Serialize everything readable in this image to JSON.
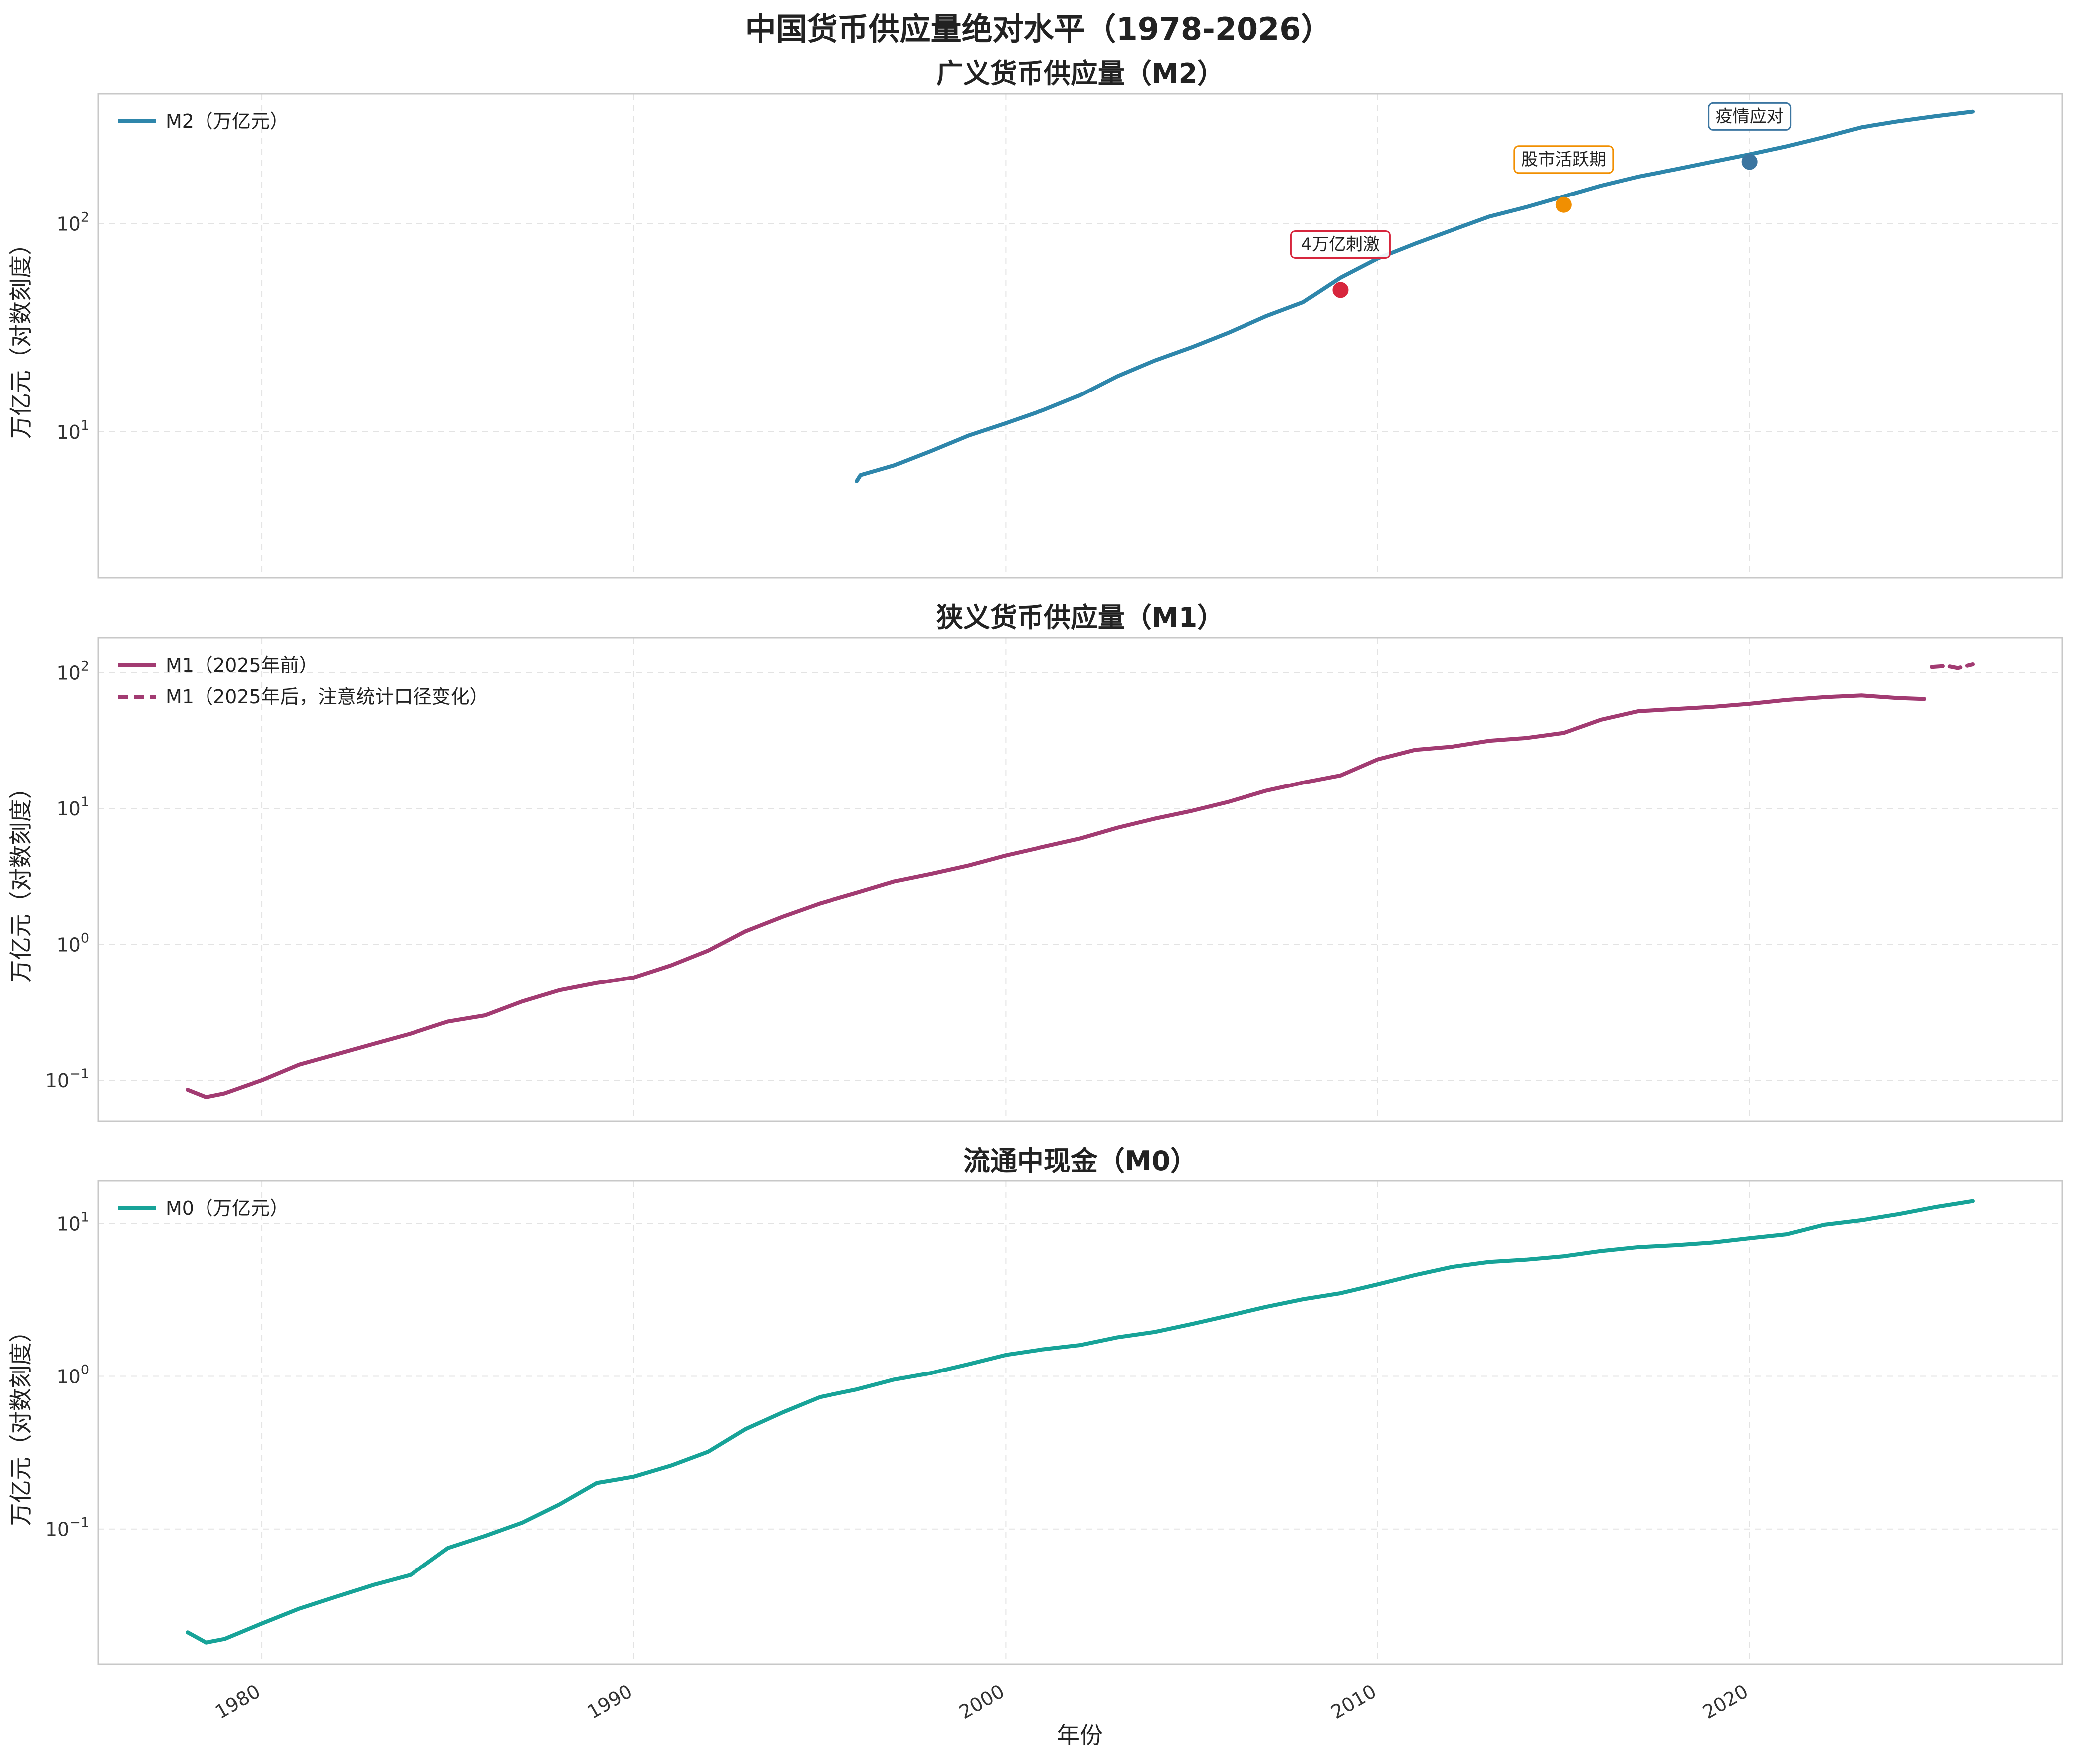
{
  "figure_title": "中国货币供应量绝对水平（1978-2026）",
  "x_axis_label": "年份",
  "x_tick_labels": [
    "1980",
    "1990",
    "2000",
    "2010",
    "2020"
  ],
  "chart_data": [
    {
      "type": "line",
      "title": "广义货币供应量（M2）",
      "ylabel": "万亿元（对数刻度）",
      "yscale": "log",
      "ylim": [
        2,
        420
      ],
      "xlim": [
        1975.6,
        2028.4
      ],
      "grid": true,
      "legend_position": "top-left",
      "ytick_labels": [
        {
          "value": 10,
          "base": "10",
          "exp": "1"
        },
        {
          "value": 100,
          "base": "10",
          "exp": "2"
        }
      ],
      "series": [
        {
          "name": "M2（万亿元）",
          "color": "#2E86AB",
          "style": "solid",
          "points": [
            [
              1996.0,
              5.8
            ],
            [
              1996.1,
              6.2
            ],
            [
              1997.0,
              6.9
            ],
            [
              1998.0,
              8.1
            ],
            [
              1999.0,
              9.6
            ],
            [
              2000.0,
              11.0
            ],
            [
              2001.0,
              12.7
            ],
            [
              2002.0,
              15.0
            ],
            [
              2003.0,
              18.5
            ],
            [
              2004.0,
              22.0
            ],
            [
              2005.0,
              25.5
            ],
            [
              2006.0,
              30.0
            ],
            [
              2007.0,
              36.0
            ],
            [
              2008.0,
              42.0
            ],
            [
              2009.0,
              55.0
            ],
            [
              2010.0,
              68.0
            ],
            [
              2011.0,
              80.0
            ],
            [
              2012.0,
              93.0
            ],
            [
              2013.0,
              108.0
            ],
            [
              2014.0,
              120.0
            ],
            [
              2015.0,
              135.0
            ],
            [
              2016.0,
              152.0
            ],
            [
              2017.0,
              168.0
            ],
            [
              2018.0,
              182.0
            ],
            [
              2019.0,
              198.0
            ],
            [
              2020.0,
              215.0
            ],
            [
              2021.0,
              235.0
            ],
            [
              2022.0,
              260.0
            ],
            [
              2023.0,
              290.0
            ],
            [
              2024.0,
              310.0
            ],
            [
              2025.0,
              328.0
            ],
            [
              2026.0,
              345.0
            ]
          ]
        }
      ],
      "annotations": [
        {
          "text": "4万亿刺激",
          "x": 2009.0,
          "y": 48.0,
          "color": "#D7263D"
        },
        {
          "text": "股市活跃期",
          "x": 2015.0,
          "y": 123.0,
          "color": "#F18F01"
        },
        {
          "text": "疫情应对",
          "x": 2020.0,
          "y": 198.0,
          "color": "#3B75A0"
        }
      ]
    },
    {
      "type": "line",
      "title": "狭义货币供应量（M1）",
      "ylabel": "万亿元（对数刻度）",
      "yscale": "log",
      "ylim": [
        0.05,
        180
      ],
      "xlim": [
        1975.6,
        2028.4
      ],
      "grid": true,
      "legend_position": "top-left",
      "ytick_labels": [
        {
          "value": 0.1,
          "base": "10",
          "exp": "−1"
        },
        {
          "value": 1,
          "base": "10",
          "exp": "0"
        },
        {
          "value": 10,
          "base": "10",
          "exp": "1"
        },
        {
          "value": 100,
          "base": "10",
          "exp": "2"
        }
      ],
      "series": [
        {
          "name": "M1（2025年前）",
          "color": "#A23B72",
          "style": "solid",
          "points": [
            [
              1978.0,
              0.085
            ],
            [
              1978.5,
              0.075
            ],
            [
              1979.0,
              0.08
            ],
            [
              1980.0,
              0.1
            ],
            [
              1981.0,
              0.13
            ],
            [
              1982.0,
              0.155
            ],
            [
              1983.0,
              0.185
            ],
            [
              1984.0,
              0.22
            ],
            [
              1985.0,
              0.27
            ],
            [
              1986.0,
              0.3
            ],
            [
              1987.0,
              0.38
            ],
            [
              1988.0,
              0.46
            ],
            [
              1989.0,
              0.52
            ],
            [
              1990.0,
              0.57
            ],
            [
              1991.0,
              0.7
            ],
            [
              1992.0,
              0.9
            ],
            [
              1993.0,
              1.25
            ],
            [
              1994.0,
              1.6
            ],
            [
              1995.0,
              2.0
            ],
            [
              1996.0,
              2.4
            ],
            [
              1997.0,
              2.9
            ],
            [
              1998.0,
              3.3
            ],
            [
              1999.0,
              3.8
            ],
            [
              2000.0,
              4.5
            ],
            [
              2001.0,
              5.2
            ],
            [
              2002.0,
              6.0
            ],
            [
              2003.0,
              7.2
            ],
            [
              2004.0,
              8.4
            ],
            [
              2005.0,
              9.6
            ],
            [
              2006.0,
              11.2
            ],
            [
              2007.0,
              13.5
            ],
            [
              2008.0,
              15.5
            ],
            [
              2009.0,
              17.5
            ],
            [
              2010.0,
              23.0
            ],
            [
              2011.0,
              27.0
            ],
            [
              2012.0,
              28.5
            ],
            [
              2013.0,
              31.5
            ],
            [
              2014.0,
              33.0
            ],
            [
              2015.0,
              36.0
            ],
            [
              2016.0,
              45.0
            ],
            [
              2017.0,
              52.0
            ],
            [
              2018.0,
              54.0
            ],
            [
              2019.0,
              56.0
            ],
            [
              2020.0,
              59.0
            ],
            [
              2021.0,
              63.0
            ],
            [
              2022.0,
              66.0
            ],
            [
              2023.0,
              68.0
            ],
            [
              2024.0,
              65.0
            ],
            [
              2024.7,
              64.0
            ]
          ]
        },
        {
          "name": "M1（2025年后，注意统计口径变化）",
          "color": "#A23B72",
          "style": "dashed",
          "points": [
            [
              2024.9,
              110.0
            ],
            [
              2025.3,
              112.0
            ],
            [
              2025.6,
              108.0
            ],
            [
              2026.0,
              115.0
            ]
          ]
        }
      ],
      "annotations": []
    },
    {
      "type": "line",
      "title": "流通中现金（M0）",
      "ylabel": "万亿元（对数刻度）",
      "yscale": "log",
      "ylim": [
        0.013,
        19
      ],
      "xlim": [
        1975.6,
        2028.4
      ],
      "grid": true,
      "legend_position": "top-left",
      "ytick_labels": [
        {
          "value": 0.1,
          "base": "10",
          "exp": "−1"
        },
        {
          "value": 1,
          "base": "10",
          "exp": "0"
        },
        {
          "value": 10,
          "base": "10",
          "exp": "1"
        }
      ],
      "series": [
        {
          "name": "M0（万亿元）",
          "color": "#17A398",
          "style": "solid",
          "points": [
            [
              1978.0,
              0.021
            ],
            [
              1978.5,
              0.018
            ],
            [
              1979.0,
              0.019
            ],
            [
              1980.0,
              0.024
            ],
            [
              1981.0,
              0.03
            ],
            [
              1982.0,
              0.036
            ],
            [
              1983.0,
              0.043
            ],
            [
              1984.0,
              0.05
            ],
            [
              1985.0,
              0.075
            ],
            [
              1986.0,
              0.09
            ],
            [
              1987.0,
              0.11
            ],
            [
              1988.0,
              0.145
            ],
            [
              1989.0,
              0.2
            ],
            [
              1990.0,
              0.22
            ],
            [
              1991.0,
              0.26
            ],
            [
              1992.0,
              0.32
            ],
            [
              1993.0,
              0.45
            ],
            [
              1994.0,
              0.58
            ],
            [
              1995.0,
              0.73
            ],
            [
              1996.0,
              0.82
            ],
            [
              1997.0,
              0.95
            ],
            [
              1998.0,
              1.05
            ],
            [
              1999.0,
              1.2
            ],
            [
              2000.0,
              1.38
            ],
            [
              2001.0,
              1.5
            ],
            [
              2002.0,
              1.6
            ],
            [
              2003.0,
              1.8
            ],
            [
              2004.0,
              1.95
            ],
            [
              2005.0,
              2.2
            ],
            [
              2006.0,
              2.5
            ],
            [
              2007.0,
              2.85
            ],
            [
              2008.0,
              3.2
            ],
            [
              2009.0,
              3.5
            ],
            [
              2010.0,
              4.0
            ],
            [
              2011.0,
              4.6
            ],
            [
              2012.0,
              5.2
            ],
            [
              2013.0,
              5.6
            ],
            [
              2014.0,
              5.8
            ],
            [
              2015.0,
              6.1
            ],
            [
              2016.0,
              6.6
            ],
            [
              2017.0,
              7.0
            ],
            [
              2018.0,
              7.2
            ],
            [
              2019.0,
              7.5
            ],
            [
              2020.0,
              8.0
            ],
            [
              2021.0,
              8.5
            ],
            [
              2022.0,
              9.8
            ],
            [
              2023.0,
              10.5
            ],
            [
              2024.0,
              11.5
            ],
            [
              2025.0,
              12.8
            ],
            [
              2026.0,
              14.0
            ]
          ]
        }
      ],
      "annotations": []
    }
  ]
}
